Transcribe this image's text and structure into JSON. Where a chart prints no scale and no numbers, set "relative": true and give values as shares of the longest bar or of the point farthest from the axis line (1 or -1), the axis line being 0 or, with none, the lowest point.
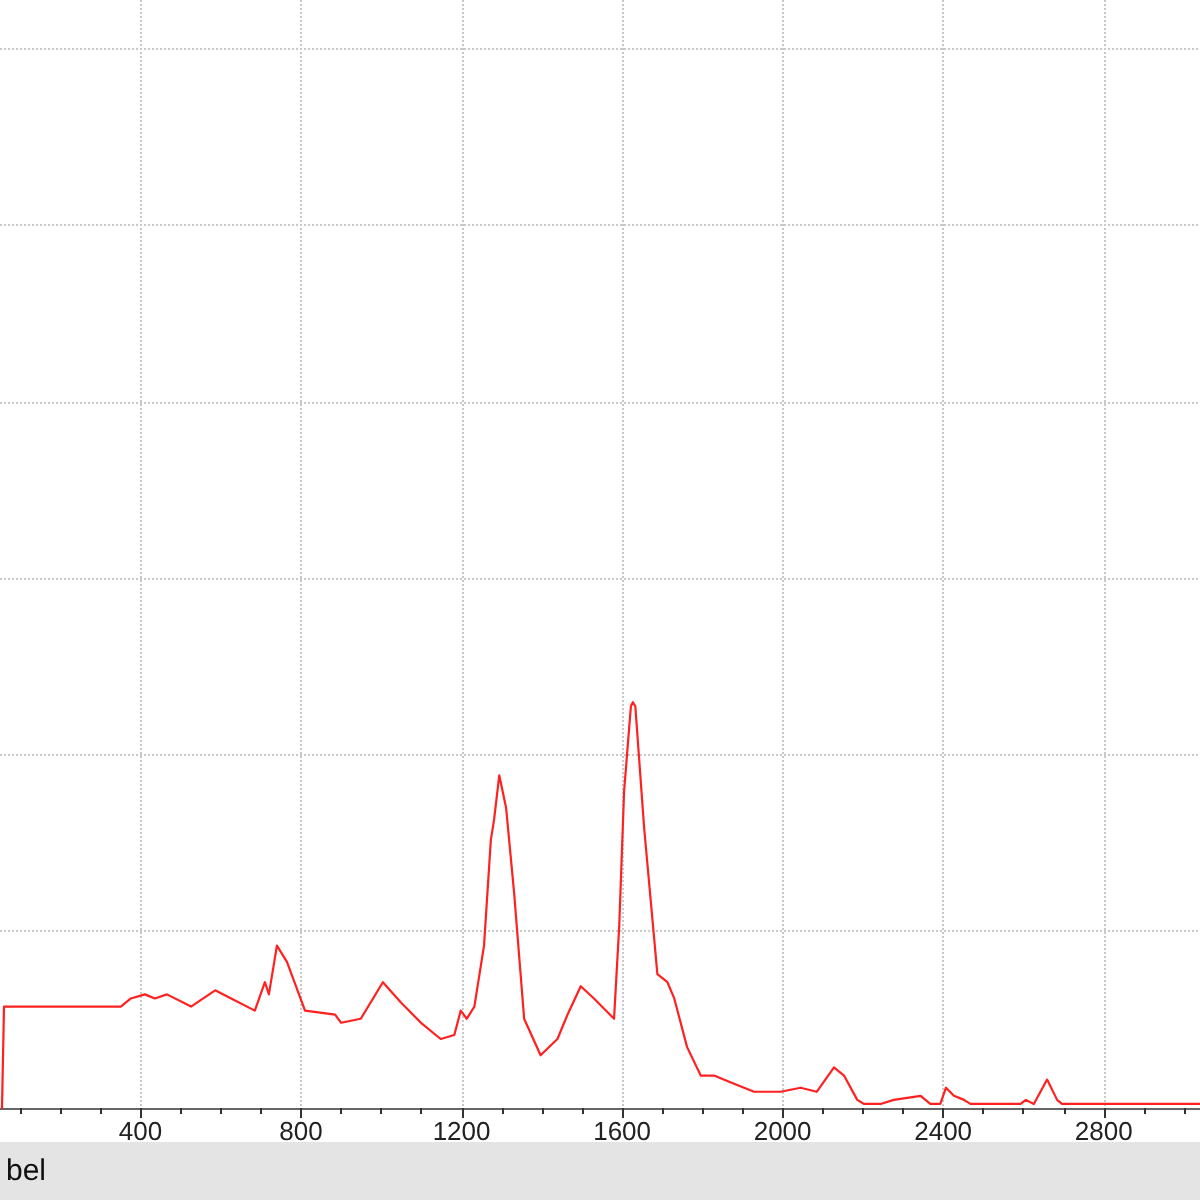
{
  "chart_data": {
    "type": "line",
    "xlabel": "bel",
    "x": [
      55,
      60,
      202,
      351,
      376,
      411,
      436,
      466,
      526,
      586,
      626,
      685,
      710,
      720,
      740,
      765,
      810,
      885,
      900,
      949,
      1004,
      1049,
      1099,
      1148,
      1182,
      1198,
      1213,
      1232,
      1256,
      1273,
      1281,
      1294,
      1311,
      1331,
      1356,
      1397,
      1439,
      1464,
      1497,
      1530,
      1580,
      1593,
      1605,
      1622,
      1627,
      1633,
      1655,
      1688,
      1713,
      1730,
      1762,
      1796,
      1829,
      1879,
      1929,
      1995,
      2045,
      2085,
      2128,
      2153,
      2186,
      2203,
      2244,
      2277,
      2344,
      2368,
      2393,
      2407,
      2427,
      2452,
      2468,
      2593,
      2606,
      2626,
      2659,
      2684,
      2696,
      3040
    ],
    "series": [
      {
        "color": "#ff2020",
        "values": [
          0,
          0.25,
          0.25,
          0.25,
          0.27,
          0.28,
          0.27,
          0.28,
          0.25,
          0.29,
          0.27,
          0.24,
          0.31,
          0.28,
          0.4,
          0.36,
          0.24,
          0.23,
          0.21,
          0.22,
          0.31,
          0.26,
          0.21,
          0.17,
          0.18,
          0.24,
          0.22,
          0.25,
          0.4,
          0.66,
          0.71,
          0.82,
          0.74,
          0.53,
          0.22,
          0.13,
          0.17,
          0.23,
          0.3,
          0.27,
          0.22,
          0.45,
          0.78,
          0.99,
          1.0,
          0.99,
          0.69,
          0.33,
          0.31,
          0.27,
          0.15,
          0.08,
          0.08,
          0.06,
          0.04,
          0.04,
          0.05,
          0.04,
          0.1,
          0.08,
          0.02,
          0.01,
          0.01,
          0.02,
          0.03,
          0.01,
          0.01,
          0.05,
          0.03,
          0.02,
          0.01,
          0.01,
          0.02,
          0.01,
          0.07,
          0.02,
          0.01,
          0.01
        ]
      }
    ],
    "relative": true,
    "xlim": [
      50,
      3040
    ],
    "xticks": [
      {
        "value": 100,
        "label": null
      },
      {
        "value": 200,
        "label": null
      },
      {
        "value": 300,
        "label": null
      },
      400,
      {
        "value": 500,
        "label": null
      },
      {
        "value": 600,
        "label": null
      },
      {
        "value": 700,
        "label": null
      },
      800,
      {
        "value": 900,
        "label": null
      },
      {
        "value": 1000,
        "label": null
      },
      {
        "value": 1100,
        "label": null
      },
      1200,
      {
        "value": 1300,
        "label": null
      },
      {
        "value": 1400,
        "label": null
      },
      {
        "value": 1500,
        "label": null
      },
      1600,
      {
        "value": 1700,
        "label": null
      },
      {
        "value": 1800,
        "label": null
      },
      {
        "value": 1900,
        "label": null
      },
      2000,
      {
        "value": 2100,
        "label": null
      },
      {
        "value": 2200,
        "label": null
      },
      {
        "value": 2300,
        "label": null
      },
      2400,
      {
        "value": 2500,
        "label": null
      },
      {
        "value": 2600,
        "label": null
      },
      {
        "value": 2700,
        "label": null
      },
      2800,
      {
        "value": 2900,
        "label": null
      },
      {
        "value": 3000,
        "label": null
      }
    ],
    "grid": true
  }
}
